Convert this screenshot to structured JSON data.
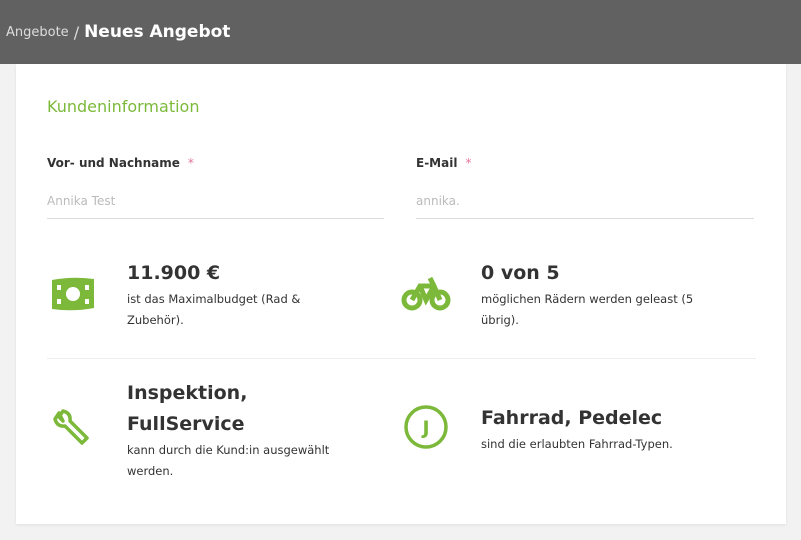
{
  "header": {
    "breadcrumb_parent": "Angebote",
    "separator": "/",
    "title": "Neues Angebot"
  },
  "section": {
    "title": "Kundeninformation"
  },
  "fields": {
    "name": {
      "label": "Vor- und Nachname",
      "required": "*",
      "value": "Annika Test"
    },
    "email": {
      "label": "E-Mail",
      "required": "*",
      "value": "annika."
    }
  },
  "info": [
    {
      "icon": "money-icon",
      "title": "11.900 €",
      "description": "ist das Maximalbudget (Rad & Zubehör)."
    },
    {
      "icon": "bicycle-icon",
      "title": "0 von 5",
      "description": "möglichen Rädern werden geleast (5 übrig)."
    },
    {
      "icon": "wrench-icon",
      "title": "Inspektion, FullService",
      "description": "kann durch die Kund:in ausgewählt werden."
    },
    {
      "icon": "circle-j-icon",
      "title": "Fahrrad, Pedelec",
      "description": "sind die erlaubten Fahrrad-Typen."
    }
  ],
  "colors": {
    "accent": "#7cb93a",
    "header": "#616161",
    "required": "#e57399"
  }
}
